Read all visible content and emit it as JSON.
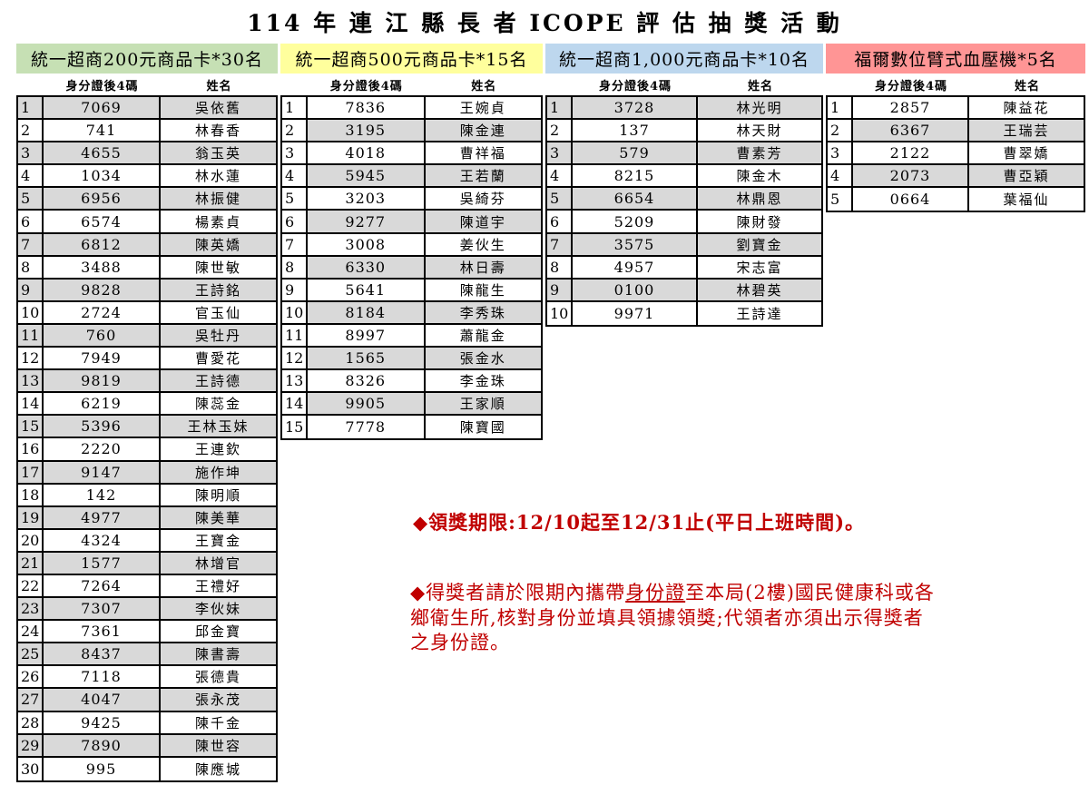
{
  "title": "114 年 連 江 縣 長 者 ICOPE 評 估 抽 獎 活 動",
  "column_headers": {
    "id": "身分證後4碼",
    "name": "姓名"
  },
  "colors": {
    "row_shade": "#d9d9d9",
    "note_red": "#c00000",
    "band_green": "#c6e0b4",
    "band_yellow": "#ffff9d",
    "band_blue": "#bdd7ee",
    "band_pink": "#ff9595"
  },
  "prizes": [
    {
      "label": "統一超商200元商品卡*30名",
      "band_color": "#c6e0b4",
      "row_shading": "odd",
      "shade_index_cell": true,
      "winners": [
        {
          "rank": 1,
          "id": "7069",
          "name": "吳依舊"
        },
        {
          "rank": 2,
          "id": "741",
          "name": "林春香"
        },
        {
          "rank": 3,
          "id": "4655",
          "name": "翁玉英"
        },
        {
          "rank": 4,
          "id": "1034",
          "name": "林水蓮"
        },
        {
          "rank": 5,
          "id": "6956",
          "name": "林振健"
        },
        {
          "rank": 6,
          "id": "6574",
          "name": "楊素貞"
        },
        {
          "rank": 7,
          "id": "6812",
          "name": "陳英嬌"
        },
        {
          "rank": 8,
          "id": "3488",
          "name": "陳世敏"
        },
        {
          "rank": 9,
          "id": "9828",
          "name": "王詩銘"
        },
        {
          "rank": 10,
          "id": "2724",
          "name": "官玉仙"
        },
        {
          "rank": 11,
          "id": "760",
          "name": "吳牡丹"
        },
        {
          "rank": 12,
          "id": "7949",
          "name": "曹愛花"
        },
        {
          "rank": 13,
          "id": "9819",
          "name": "王詩德"
        },
        {
          "rank": 14,
          "id": "6219",
          "name": "陳蕊金"
        },
        {
          "rank": 15,
          "id": "5396",
          "name": "王林玉妹"
        },
        {
          "rank": 16,
          "id": "2220",
          "name": "王連欽"
        },
        {
          "rank": 17,
          "id": "9147",
          "name": "施作坤"
        },
        {
          "rank": 18,
          "id": "142",
          "name": "陳明順"
        },
        {
          "rank": 19,
          "id": "4977",
          "name": "陳美華"
        },
        {
          "rank": 20,
          "id": "4324",
          "name": "王寶金"
        },
        {
          "rank": 21,
          "id": "1577",
          "name": "林增官"
        },
        {
          "rank": 22,
          "id": "7264",
          "name": "王禮好"
        },
        {
          "rank": 23,
          "id": "7307",
          "name": "李伙妹"
        },
        {
          "rank": 24,
          "id": "7361",
          "name": "邱金寶"
        },
        {
          "rank": 25,
          "id": "8437",
          "name": "陳書壽"
        },
        {
          "rank": 26,
          "id": "7118",
          "name": "張德貴"
        },
        {
          "rank": 27,
          "id": "4047",
          "name": "張永茂"
        },
        {
          "rank": 28,
          "id": "9425",
          "name": "陳千金"
        },
        {
          "rank": 29,
          "id": "7890",
          "name": "陳世容"
        },
        {
          "rank": 30,
          "id": "995",
          "name": "陳應城"
        }
      ]
    },
    {
      "label": "統一超商500元商品卡*15名",
      "band_color": "#ffff9d",
      "row_shading": "even",
      "shade_index_cell": false,
      "winners": [
        {
          "rank": 1,
          "id": "7836",
          "name": "王婉貞"
        },
        {
          "rank": 2,
          "id": "3195",
          "name": "陳金連"
        },
        {
          "rank": 3,
          "id": "4018",
          "name": "曹祥福"
        },
        {
          "rank": 4,
          "id": "5945",
          "name": "王若蘭"
        },
        {
          "rank": 5,
          "id": "3203",
          "name": "吳綺芬"
        },
        {
          "rank": 6,
          "id": "9277",
          "name": "陳道宇"
        },
        {
          "rank": 7,
          "id": "3008",
          "name": "姜伙生"
        },
        {
          "rank": 8,
          "id": "6330",
          "name": "林日壽"
        },
        {
          "rank": 9,
          "id": "5641",
          "name": "陳龍生"
        },
        {
          "rank": 10,
          "id": "8184",
          "name": "李秀珠"
        },
        {
          "rank": 11,
          "id": "8997",
          "name": "蕭龍金"
        },
        {
          "rank": 12,
          "id": "1565",
          "name": "張金水"
        },
        {
          "rank": 13,
          "id": "8326",
          "name": "李金珠"
        },
        {
          "rank": 14,
          "id": "9905",
          "name": "王家順"
        },
        {
          "rank": 15,
          "id": "7778",
          "name": "陳寶國"
        }
      ]
    },
    {
      "label": "統一超商1,000元商品卡*10名",
      "band_color": "#bdd7ee",
      "row_shading": "odd",
      "shade_index_cell": true,
      "winners": [
        {
          "rank": 1,
          "id": "3728",
          "name": "林光明"
        },
        {
          "rank": 2,
          "id": "137",
          "name": "林天財"
        },
        {
          "rank": 3,
          "id": "579",
          "name": "曹素芳"
        },
        {
          "rank": 4,
          "id": "8215",
          "name": "陳金木"
        },
        {
          "rank": 5,
          "id": "6654",
          "name": "林鼎恩"
        },
        {
          "rank": 6,
          "id": "5209",
          "name": "陳財發"
        },
        {
          "rank": 7,
          "id": "3575",
          "name": "劉寶金"
        },
        {
          "rank": 8,
          "id": "4957",
          "name": "宋志富"
        },
        {
          "rank": 9,
          "id": "0100",
          "name": "林碧英"
        },
        {
          "rank": 10,
          "id": "9971",
          "name": "王詩達"
        }
      ]
    },
    {
      "label": "福爾數位臂式血壓機*5名",
      "band_color": "#ff9595",
      "row_shading": "even",
      "shade_index_cell": false,
      "winners": [
        {
          "rank": 1,
          "id": "2857",
          "name": "陳益花"
        },
        {
          "rank": 2,
          "id": "6367",
          "name": "王瑞芸"
        },
        {
          "rank": 3,
          "id": "2122",
          "name": "曹翠嬌"
        },
        {
          "rank": 4,
          "id": "2073",
          "name": "曹亞穎"
        },
        {
          "rank": 5,
          "id": "0664",
          "name": "葉福仙"
        }
      ]
    }
  ],
  "notes": {
    "deadline": "◆領獎期限:12/10起至12/31止(平日上班時間)。",
    "claim": {
      "prefix": "◆得獎者請於限期內攜帶",
      "underlined": "身份證",
      "suffix": "至本局(2樓)國民健康科或各鄉衛生所,核對身份並填具領據領獎;代領者亦須出示得獎者之身份證。"
    }
  }
}
